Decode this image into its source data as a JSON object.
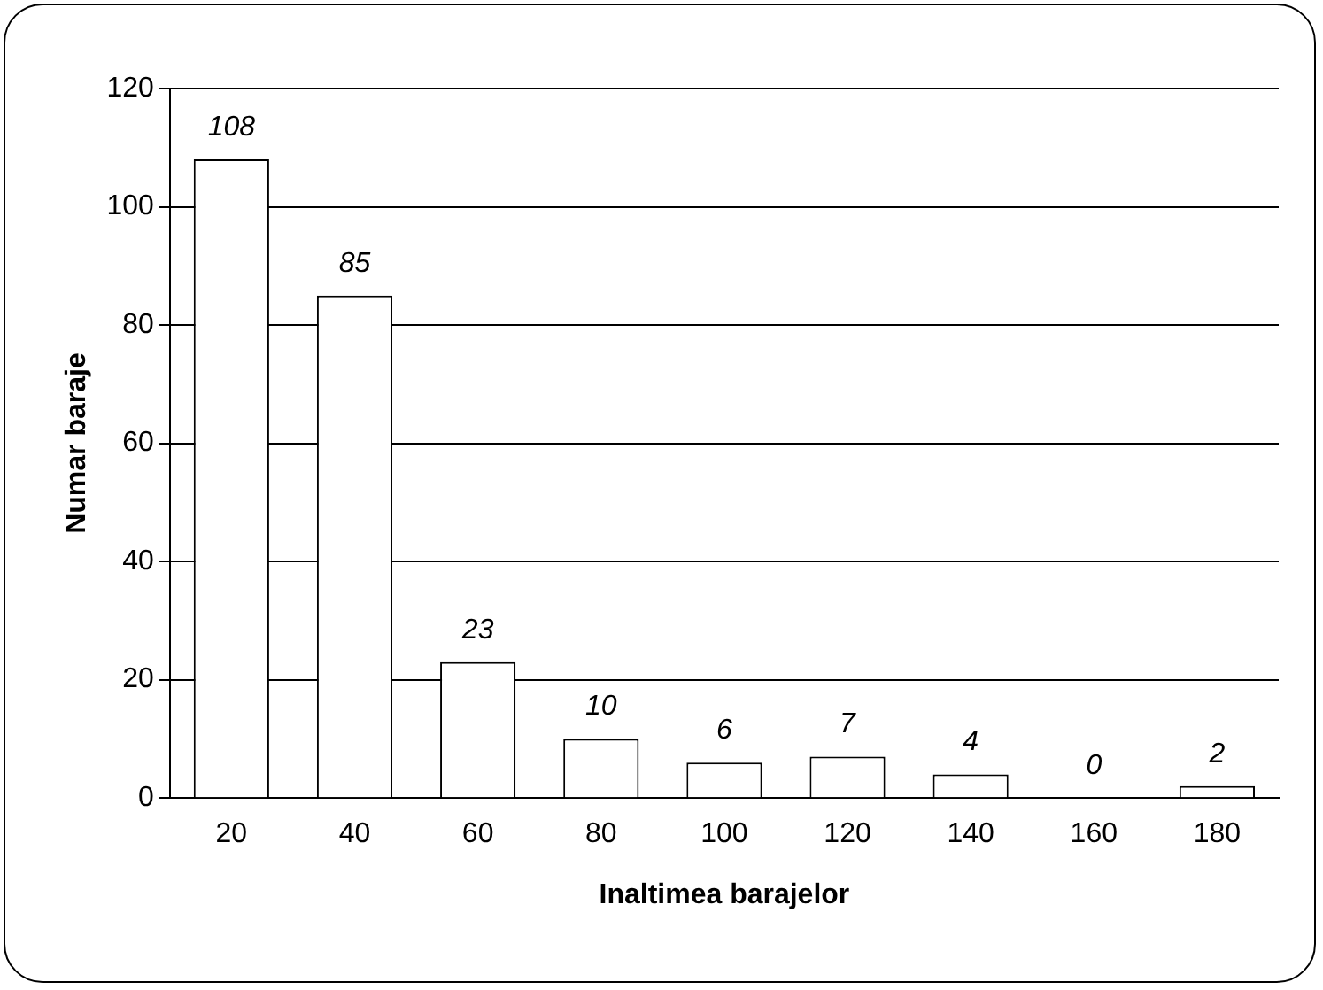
{
  "chart_data": {
    "type": "bar",
    "xlabel": "Inaltimea barajelor",
    "ylabel": "Numar baraje",
    "categories": [
      "20",
      "40",
      "60",
      "80",
      "100",
      "120",
      "140",
      "160",
      "180"
    ],
    "values": [
      108,
      85,
      23,
      10,
      6,
      7,
      4,
      0,
      2
    ],
    "color": "#ffffff",
    "ylim": [
      0,
      120
    ],
    "yticks": [
      0,
      20,
      40,
      60,
      80,
      100,
      120
    ],
    "grid": "y",
    "data_labels": true
  }
}
